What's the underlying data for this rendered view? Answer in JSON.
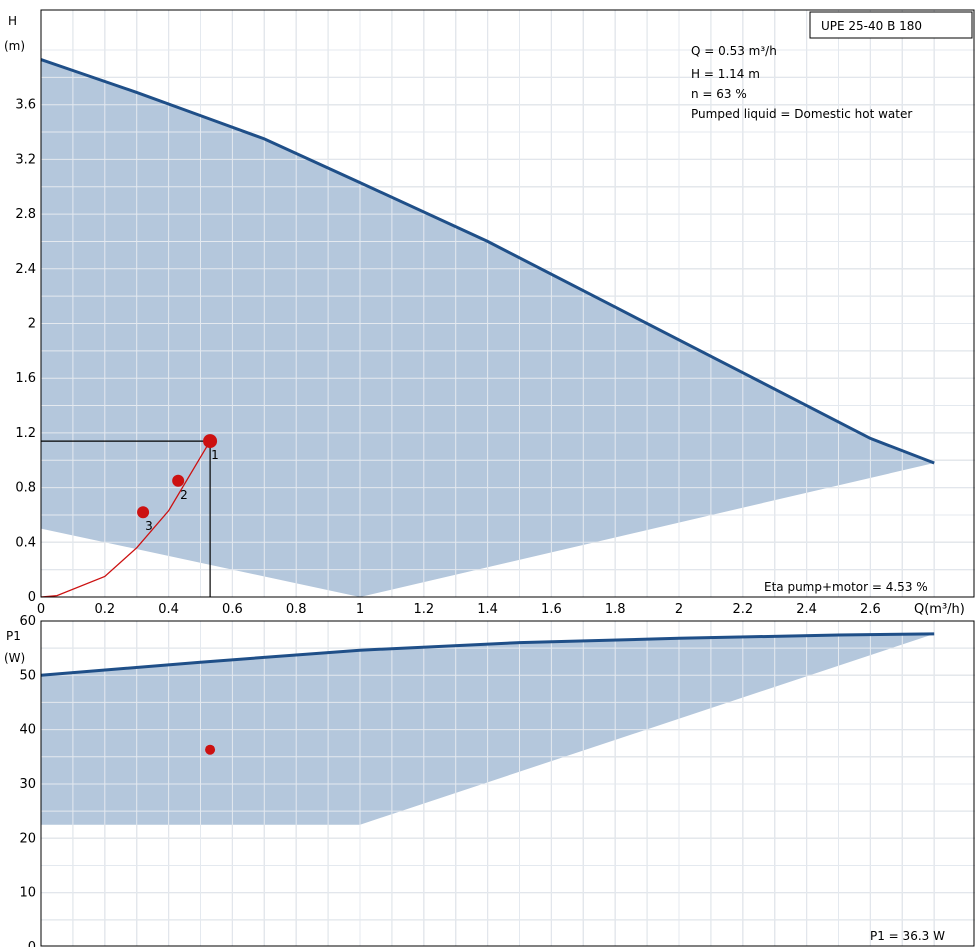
{
  "chart_data": [
    {
      "name": "head-chart",
      "type": "line",
      "title": "UPE 25-40 B 180",
      "ylabel_top": "H",
      "ylabel_unit": "(m)",
      "xlabel": "Q(m³/h)",
      "xlim": [
        0,
        2.9
      ],
      "ylim": [
        0,
        4.0
      ],
      "grid": true,
      "x_ticks": [
        "0",
        "0.2",
        "0.4",
        "0.6",
        "0.8",
        "1",
        "1.2",
        "1.4",
        "1.6",
        "1.8",
        "2",
        "2.2",
        "2.4",
        "2.6"
      ],
      "y_ticks": [
        "0",
        "0.4",
        "0.8",
        "1.2",
        "1.6",
        "2",
        "2.4",
        "2.8",
        "3.2",
        "3.6"
      ],
      "info_lines": [
        "Q = 0.53 m³/h",
        "H = 1.14 m",
        "n = 63 %",
        "Pumped liquid = Domestic hot water"
      ],
      "bottom_note": "Eta pump+motor = 4.53 %",
      "max_curve": [
        [
          0,
          3.93
        ],
        [
          0.1,
          3.85
        ],
        [
          0.3,
          3.69
        ],
        [
          0.5,
          3.52
        ],
        [
          0.7,
          3.35
        ],
        [
          1.0,
          3.03
        ],
        [
          1.4,
          2.6
        ],
        [
          1.8,
          2.12
        ],
        [
          2.2,
          1.64
        ],
        [
          2.6,
          1.16
        ],
        [
          2.8,
          0.98
        ]
      ],
      "min_envelope": [
        [
          0,
          0.5
        ],
        [
          1.0,
          0.0
        ],
        [
          2.8,
          0.98
        ]
      ],
      "system_curve": [
        [
          0,
          0.0
        ],
        [
          0.05,
          0.01
        ],
        [
          0.2,
          0.15
        ],
        [
          0.3,
          0.36
        ],
        [
          0.4,
          0.63
        ],
        [
          0.53,
          1.14
        ]
      ],
      "operating_point": {
        "x": 0.53,
        "y": 1.14
      },
      "points": [
        {
          "label": "1",
          "x": 0.53,
          "y": 1.14
        },
        {
          "label": "2",
          "x": 0.43,
          "y": 0.85
        },
        {
          "label": "3",
          "x": 0.32,
          "y": 0.62
        }
      ]
    },
    {
      "name": "power-chart",
      "type": "line",
      "ylabel_top": "P1",
      "ylabel_unit": "(W)",
      "xlim": [
        0,
        2.9
      ],
      "ylim": [
        0,
        70
      ],
      "grid": true,
      "y_ticks": [
        "0",
        "10",
        "20",
        "30",
        "40",
        "50",
        "60"
      ],
      "bottom_note": "P1 = 36.3 W",
      "max_curve": [
        [
          0,
          50
        ],
        [
          0.5,
          52.4
        ],
        [
          1.0,
          54.6
        ],
        [
          1.5,
          56.0
        ],
        [
          2.0,
          56.8
        ],
        [
          2.5,
          57.4
        ],
        [
          2.8,
          57.6
        ]
      ],
      "min_envelope": [
        [
          0,
          22.5
        ],
        [
          1.0,
          22.5
        ],
        [
          2.8,
          57.6
        ]
      ],
      "operating_point": {
        "x": 0.53,
        "y": 36.3
      }
    }
  ],
  "colors": {
    "fill": "#b4c7dc",
    "curve": "#1f4f88",
    "marker": "#cc1111",
    "system": "#cc1111",
    "grid": "#c8c8c8",
    "background": "#ffffff"
  }
}
